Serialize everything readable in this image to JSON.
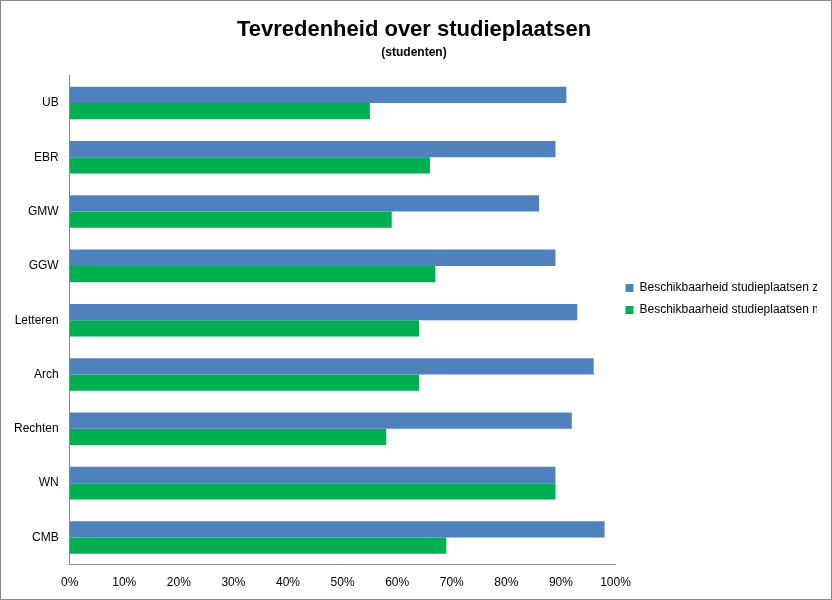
{
  "chart_data": {
    "type": "bar",
    "orientation": "horizontal",
    "title": "Tevredenheid over studieplaatsen",
    "subtitle": "(studenten)",
    "categories": [
      "UB",
      "EBR",
      "GMW",
      "GGW",
      "Letteren",
      "Arch",
      "Rechten",
      "WN",
      "CMB"
    ],
    "series": [
      {
        "name": "Beschikbaarheid studieplaatsen zonder pc",
        "color": "#4f81bd",
        "values": [
          91,
          89,
          86,
          89,
          93,
          96,
          92,
          89,
          98
        ]
      },
      {
        "name": "Beschikbaarheid studieplaatsen met pc",
        "color": "#00b050",
        "values": [
          55,
          66,
          59,
          67,
          64,
          64,
          58,
          89,
          69
        ]
      }
    ],
    "xlim": [
      0,
      100
    ],
    "xticks": [
      {
        "value": 0,
        "label": "0%"
      },
      {
        "value": 10,
        "label": "10%"
      },
      {
        "value": 20,
        "label": "20%"
      },
      {
        "value": 30,
        "label": "30%"
      },
      {
        "value": 40,
        "label": "40%"
      },
      {
        "value": 50,
        "label": "50%"
      },
      {
        "value": 60,
        "label": "60%"
      },
      {
        "value": 70,
        "label": "70%"
      },
      {
        "value": 80,
        "label": "80%"
      },
      {
        "value": 90,
        "label": "90%"
      },
      {
        "value": 100,
        "label": "100%"
      }
    ],
    "grid": false,
    "legend": "right"
  }
}
